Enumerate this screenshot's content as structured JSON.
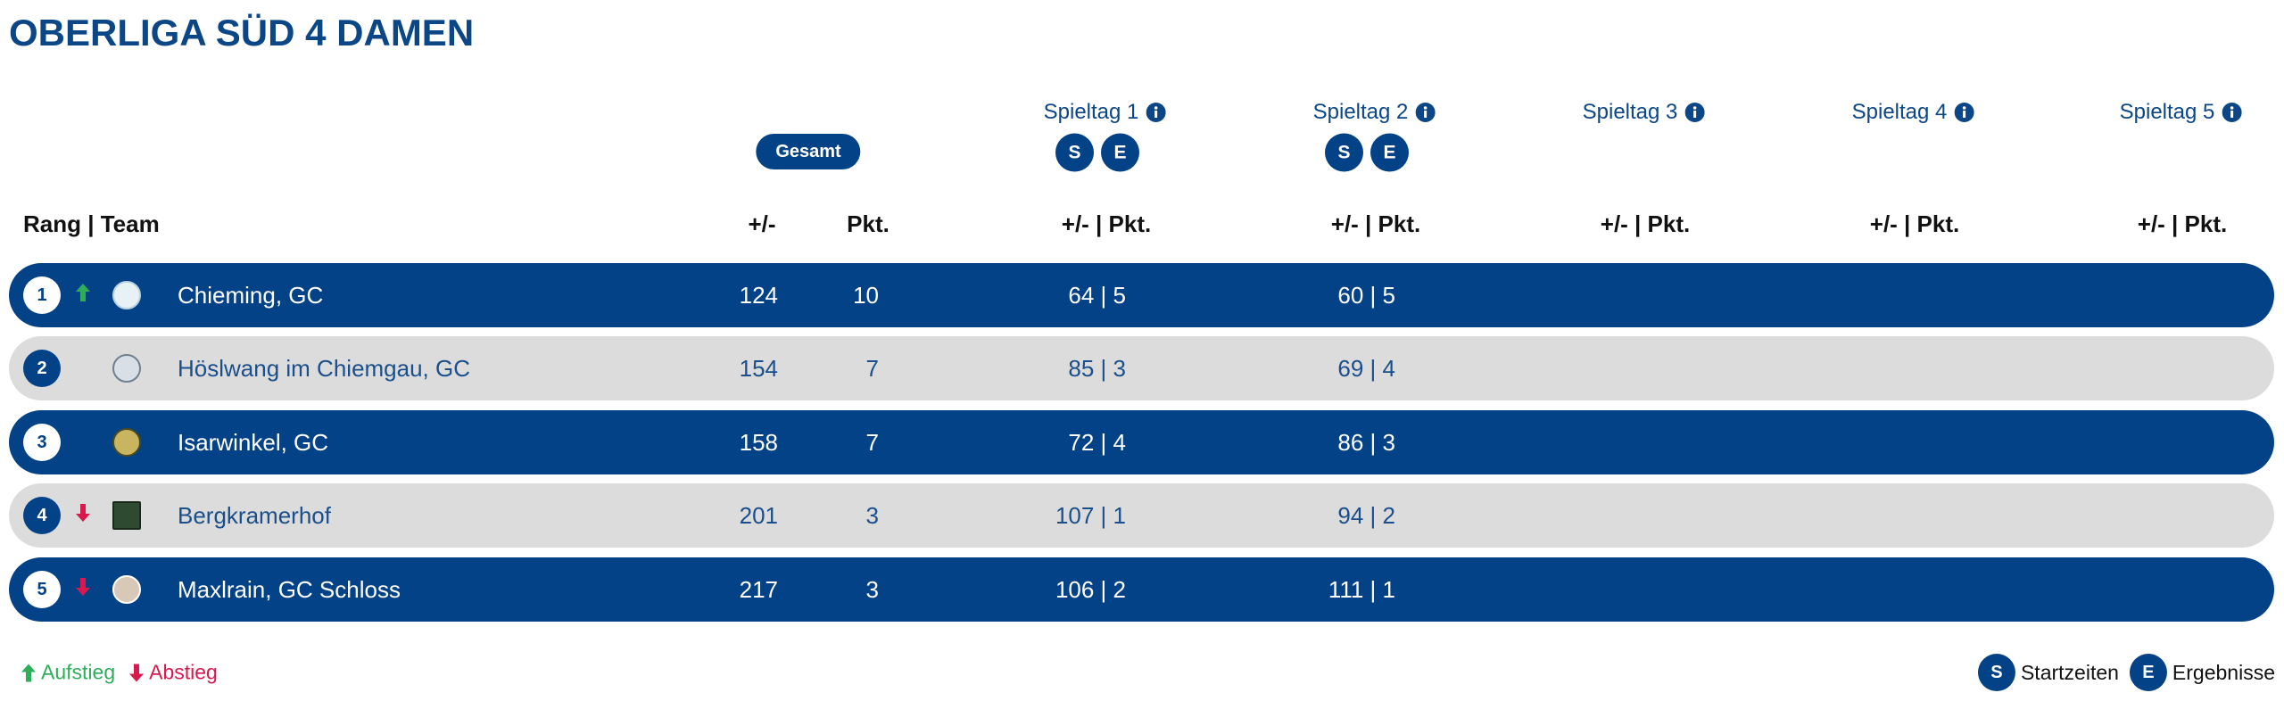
{
  "title": "OBERLIGA SÜD 4 DAMEN",
  "header": {
    "rank_team": "Rang | Team",
    "gesamt_button": "Gesamt",
    "diff": "+/-",
    "points": "Pkt.",
    "matchdays": [
      {
        "label": "Spieltag 1",
        "buttons": [
          "S",
          "E"
        ],
        "column": "+/- | Pkt."
      },
      {
        "label": "Spieltag 2",
        "buttons": [
          "S",
          "E"
        ],
        "column": "+/- | Pkt."
      },
      {
        "label": "Spieltag 3",
        "buttons": [],
        "column": "+/- | Pkt."
      },
      {
        "label": "Spieltag 4",
        "buttons": [],
        "column": "+/- | Pkt."
      },
      {
        "label": "Spieltag 5",
        "buttons": [],
        "column": "+/- | Pkt."
      }
    ]
  },
  "rows": [
    {
      "rank": 1,
      "trend": "up",
      "team": "Chieming, GC",
      "diff": 124,
      "points": 10,
      "matchdays": [
        "64 | 5",
        "60 | 5"
      ]
    },
    {
      "rank": 2,
      "trend": null,
      "team": "Höslwang im Chiemgau, GC",
      "diff": 154,
      "points": 7,
      "matchdays": [
        "85 | 3",
        "69 | 4"
      ]
    },
    {
      "rank": 3,
      "trend": null,
      "team": "Isarwinkel, GC",
      "diff": 158,
      "points": 7,
      "matchdays": [
        "72 | 4",
        "86 | 3"
      ]
    },
    {
      "rank": 4,
      "trend": "down",
      "team": "Bergkramerhof",
      "diff": 201,
      "points": 3,
      "matchdays": [
        "107 | 1",
        "94 | 2"
      ]
    },
    {
      "rank": 5,
      "trend": "down",
      "team": "Maxlrain, GC Schloss",
      "diff": 217,
      "points": 3,
      "matchdays": [
        "106 | 2",
        "111 | 1"
      ]
    }
  ],
  "legend": {
    "up": "Aufstieg",
    "down": "Abstieg",
    "start_key": "S",
    "start": "Startzeiten",
    "results_key": "E",
    "results": "Ergebnisse"
  }
}
